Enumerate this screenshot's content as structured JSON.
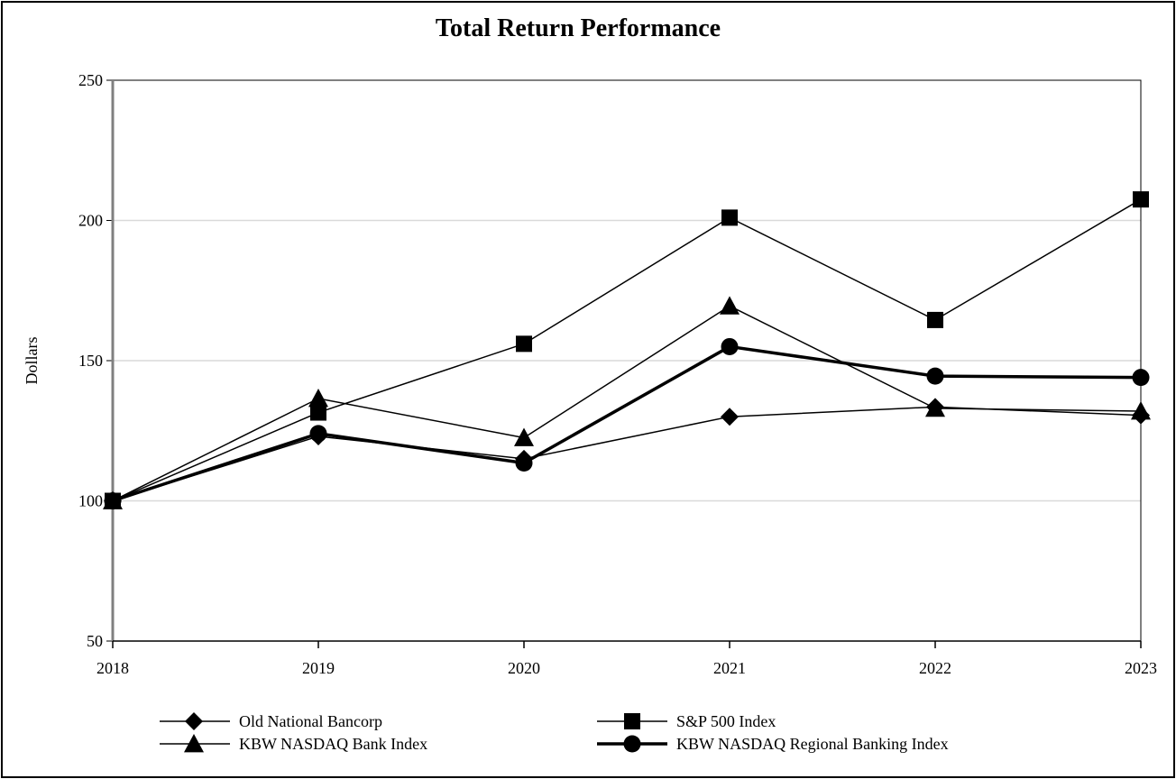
{
  "chart_data": {
    "type": "line",
    "title": "Total Return Performance",
    "ylabel": "Dollars",
    "xlabel": "",
    "x": [
      "2018",
      "2019",
      "2020",
      "2021",
      "2022",
      "2023"
    ],
    "ylim": [
      50,
      250
    ],
    "yticks": [
      50,
      100,
      150,
      200,
      250
    ],
    "grid": "horizontal",
    "legend_position": "bottom",
    "series": [
      {
        "name": "Old National Bancorp",
        "marker": "diamond",
        "stroke_weight": "thin",
        "values": [
          100,
          123,
          115,
          130,
          133.5,
          130.5
        ]
      },
      {
        "name": "S&P 500 Index",
        "marker": "square",
        "stroke_weight": "thin",
        "values": [
          100,
          131.5,
          156,
          201,
          164.5,
          207.5
        ]
      },
      {
        "name": "KBW NASDAQ Bank Index",
        "marker": "triangle",
        "stroke_weight": "thin",
        "values": [
          100,
          136.5,
          122.5,
          169.5,
          133,
          132
        ]
      },
      {
        "name": "KBW NASDAQ Regional Banking Index",
        "marker": "circle",
        "stroke_weight": "thick",
        "values": [
          100,
          124,
          113.5,
          155,
          144.5,
          144
        ]
      }
    ]
  }
}
